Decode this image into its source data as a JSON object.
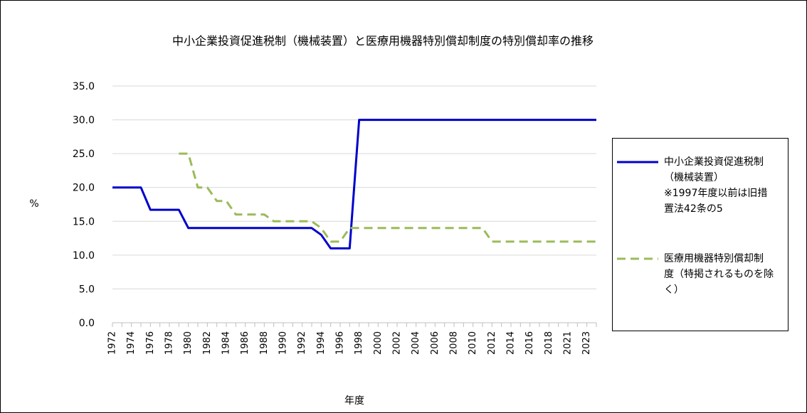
{
  "chart_data": {
    "type": "line",
    "title": "中小企業投資促進税制（機械装置）と医療用機器特別償却制度の特別償却率の推移",
    "xlabel": "年度",
    "ylabel": "%",
    "ylim": [
      0,
      35
    ],
    "y_ticks": [
      "0.0",
      "5.0",
      "10.0",
      "15.0",
      "20.0",
      "25.0",
      "30.0",
      "35.0"
    ],
    "grid": "horizontal",
    "legend_position": "right",
    "categories": [
      "1972",
      "1973",
      "1974",
      "1975",
      "1976",
      "1977",
      "1978",
      "1979",
      "1980",
      "1981",
      "1982",
      "1983",
      "1984",
      "1985",
      "1986",
      "1987",
      "1988",
      "1989",
      "1990",
      "1991",
      "1992",
      "1993",
      "1994",
      "1995",
      "1996",
      "1997",
      "1998",
      "1999",
      "2000",
      "2001",
      "2002",
      "2003",
      "2004",
      "2005",
      "2006",
      "2007",
      "2008",
      "2009",
      "2010",
      "2011",
      "2012",
      "2013",
      "2014",
      "2015",
      "2016",
      "2017",
      "2018",
      "2019",
      "2021",
      "2022",
      "2023",
      "2024"
    ],
    "x_tick_labels": [
      "1972",
      "1974",
      "1976",
      "1978",
      "1980",
      "1982",
      "1984",
      "1986",
      "1988",
      "1990",
      "1992",
      "1994",
      "1996",
      "1998",
      "2000",
      "2002",
      "2004",
      "2006",
      "2008",
      "2010",
      "2012",
      "2014",
      "2016",
      "2018",
      "2021",
      "2023"
    ],
    "series": [
      {
        "name": "中小企業投資促進税制（機械装置）※1997年度以前は旧措置法42条の5",
        "color": "#0000CC",
        "dash": "solid",
        "values": [
          20,
          20,
          20,
          20,
          16.7,
          16.7,
          16.7,
          16.7,
          14,
          14,
          14,
          14,
          14,
          14,
          14,
          14,
          14,
          14,
          14,
          14,
          14,
          14,
          13,
          11,
          11,
          11,
          30,
          30,
          30,
          30,
          30,
          30,
          30,
          30,
          30,
          30,
          30,
          30,
          30,
          30,
          30,
          30,
          30,
          30,
          30,
          30,
          30,
          30,
          30,
          30,
          30,
          30
        ]
      },
      {
        "name": "医療用機器特別償却制度（特掲されるものを除く）",
        "color": "#9BBB59",
        "dash": "dashed",
        "values": [
          null,
          null,
          null,
          null,
          null,
          null,
          null,
          25,
          25,
          20,
          20,
          18,
          18,
          16,
          16,
          16,
          16,
          15,
          15,
          15,
          15,
          15,
          14,
          12,
          12,
          14,
          14,
          14,
          14,
          14,
          14,
          14,
          14,
          14,
          14,
          14,
          14,
          14,
          14,
          14,
          12,
          12,
          12,
          12,
          12,
          12,
          12,
          12,
          12,
          12,
          12,
          12
        ]
      }
    ]
  },
  "legend": {
    "item1": "中小企業投資促進税制\n（機械装置）\n※1997年度以前は旧措\n置法42条の5",
    "item2": "医療用機器特別償却制\n度（特掲されるものを除\nく）"
  }
}
